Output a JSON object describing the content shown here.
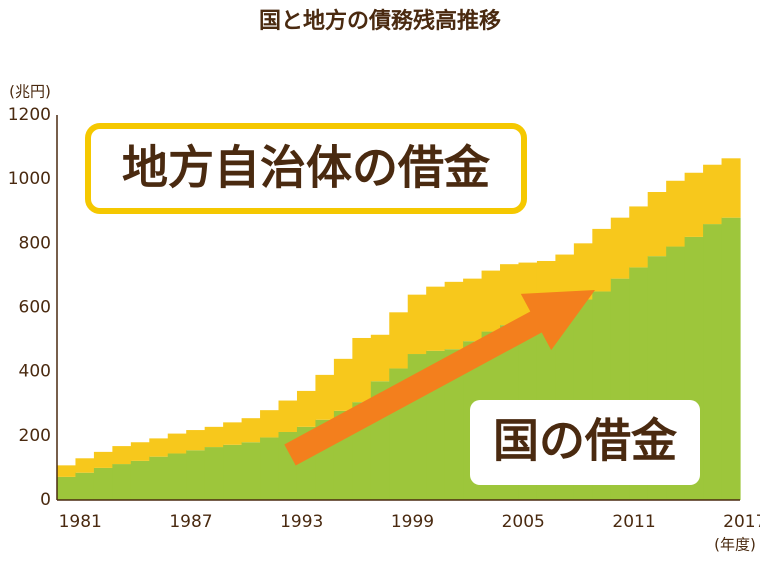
{
  "chart_data": {
    "type": "stacked_step_area",
    "title": "国と地方の債務残高推移",
    "y_unit": "(兆円)",
    "x_unit": "(年度)",
    "categories": [
      "1981",
      null,
      null,
      null,
      null,
      null,
      "1987",
      null,
      null,
      null,
      null,
      null,
      "1993",
      null,
      null,
      null,
      null,
      null,
      "1999",
      null,
      null,
      null,
      null,
      null,
      "2005",
      null,
      null,
      null,
      null,
      null,
      "2011",
      null,
      null,
      null,
      null,
      null,
      "2017"
    ],
    "series": [
      {
        "name": "国の借金",
        "color": "#9dc63b",
        "values": [
          72,
          85,
          100,
          112,
          122,
          135,
          145,
          155,
          165,
          172,
          180,
          195,
          212,
          228,
          250,
          278,
          305,
          370,
          410,
          455,
          465,
          470,
          495,
          525,
          545,
          560,
          570,
          595,
          625,
          650,
          690,
          725,
          760,
          790,
          820,
          860,
          880
        ]
      },
      {
        "name": "地方自治体の借金",
        "color": "#f7c81c",
        "values": [
          36,
          45,
          50,
          56,
          58,
          57,
          62,
          63,
          63,
          70,
          75,
          85,
          98,
          112,
          140,
          162,
          200,
          145,
          175,
          185,
          200,
          210,
          195,
          190,
          190,
          180,
          175,
          170,
          175,
          195,
          190,
          190,
          200,
          205,
          200,
          185,
          185
        ]
      }
    ],
    "ylim": [
      0,
      1200
    ],
    "yticks": [
      0,
      200,
      400,
      600,
      800,
      1000,
      1200
    ],
    "grid": false
  }
}
